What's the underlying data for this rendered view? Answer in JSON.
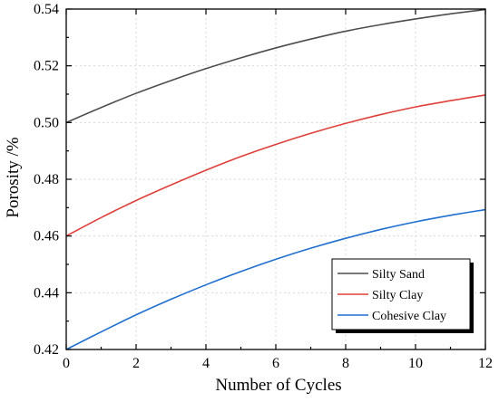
{
  "chart_data": {
    "type": "line",
    "xlabel": "Number of Cycles",
    "ylabel": "Porosity /%",
    "xlim": [
      0,
      12
    ],
    "ylim": [
      0.42,
      0.54
    ],
    "xticks": [
      "0",
      "2",
      "4",
      "6",
      "8",
      "10",
      "12"
    ],
    "yticks": [
      "0.42",
      "0.44",
      "0.46",
      "0.48",
      "0.50",
      "0.52",
      "0.54"
    ],
    "grid": true,
    "legend_position": "bottom-right",
    "x": [
      0,
      1,
      2,
      3,
      4,
      5,
      6,
      7,
      8,
      9,
      10,
      11,
      12
    ],
    "series": [
      {
        "name": "Silty Sand",
        "color": "#4d4d4d",
        "values": [
          0.5,
          0.5053,
          0.5103,
          0.5148,
          0.519,
          0.5228,
          0.5263,
          0.5294,
          0.5322,
          0.5345,
          0.5365,
          0.5383,
          0.5398
        ]
      },
      {
        "name": "Silty Clay",
        "color": "#e0403a",
        "values": [
          0.46,
          0.4665,
          0.4725,
          0.478,
          0.4832,
          0.488,
          0.4923,
          0.4962,
          0.4997,
          0.5028,
          0.5055,
          0.5077,
          0.5097
        ]
      },
      {
        "name": "Cohesive Clay",
        "color": "#1f6fcf",
        "values": [
          0.42,
          0.4262,
          0.4322,
          0.4377,
          0.4428,
          0.4475,
          0.4518,
          0.4557,
          0.4592,
          0.4623,
          0.465,
          0.4673,
          0.4693
        ]
      }
    ]
  }
}
